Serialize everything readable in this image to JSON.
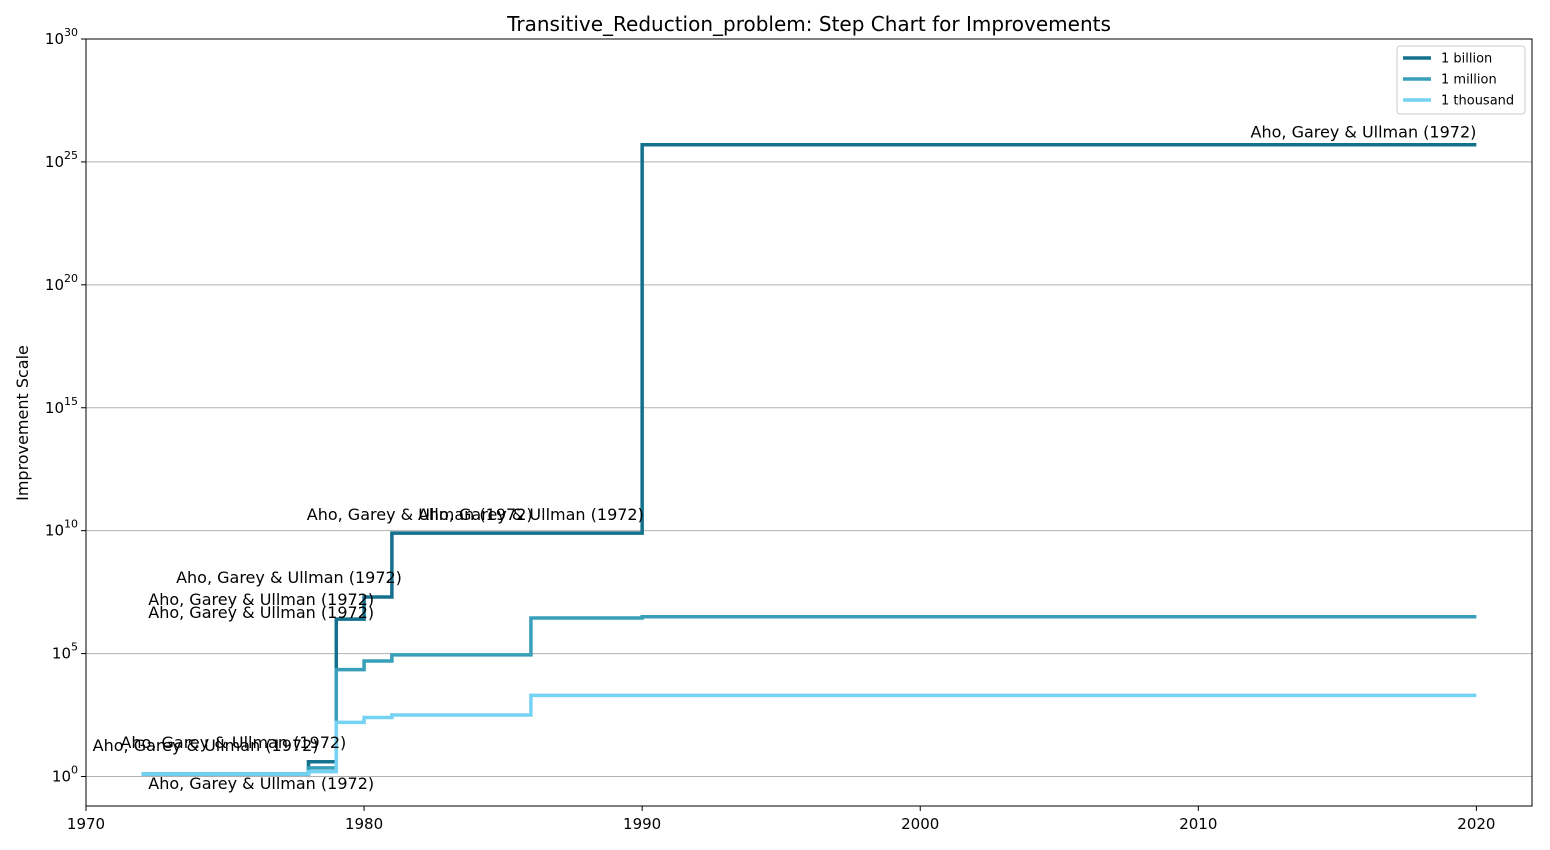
{
  "chart_data": {
    "type": "line",
    "step": true,
    "title": "Transitive_Reduction_problem: Step Chart for Improvements",
    "xlabel": "",
    "ylabel": "Improvement Scale",
    "yscale": "log",
    "xlim": [
      1970,
      2022
    ],
    "ylim_exp": [
      -1.2,
      30
    ],
    "x_ticks": [
      1970,
      1980,
      1990,
      2000,
      2010,
      2020
    ],
    "y_tick_exponents": [
      0,
      5,
      10,
      15,
      20,
      25,
      30
    ],
    "y_tick_base": "10",
    "grid": "horizontal",
    "legend_position": "top-right",
    "series": [
      {
        "name": "1 billion",
        "color": "#13718d",
        "steps": [
          [
            1972,
            0.1
          ],
          [
            1978,
            0.6
          ],
          [
            1979,
            6.4
          ],
          [
            1980,
            7.3
          ],
          [
            1981,
            9.9
          ],
          [
            1990,
            25.7
          ],
          [
            2020,
            25.7
          ]
        ]
      },
      {
        "name": "1 million",
        "color": "#379fb9",
        "steps": [
          [
            1972,
            0.1
          ],
          [
            1978,
            0.35
          ],
          [
            1979,
            4.35
          ],
          [
            1980,
            4.7
          ],
          [
            1981,
            4.95
          ],
          [
            1986,
            6.45
          ],
          [
            1990,
            6.5
          ],
          [
            2020,
            6.5
          ]
        ]
      },
      {
        "name": "1 thousand",
        "color": "#74d2f2",
        "steps": [
          [
            1972,
            0.1
          ],
          [
            1978,
            0.2
          ],
          [
            1979,
            2.2
          ],
          [
            1980,
            2.4
          ],
          [
            1981,
            2.5
          ],
          [
            1986,
            3.3
          ],
          [
            1990,
            3.3
          ],
          [
            2020,
            3.3
          ]
        ]
      }
    ],
    "annotations": [
      {
        "text": "Aho, Garey & Ullman (1972)",
        "x": 2020,
        "y_exp": 25.7,
        "anchor": "end",
        "dy": -7
      },
      {
        "text": "Aho, Garey & Ullman (1972)",
        "x": 1986,
        "y_exp": 9.9,
        "anchor": "middle",
        "dy": -13
      },
      {
        "text": "Aho, Garey & Ullman (1972)",
        "x": 1982,
        "y_exp": 9.9,
        "anchor": "middle",
        "dy": -13
      },
      {
        "text": "Aho, Garey & Ullman (1972)",
        "x": 1977.3,
        "y_exp": 7.3,
        "anchor": "middle",
        "dy": -14
      },
      {
        "text": "Aho, Garey & Ullman (1972)",
        "x": 1976.3,
        "y_exp": 6.4,
        "anchor": "middle",
        "dy": -14
      },
      {
        "text": "Aho, Garey & Ullman (1972)",
        "x": 1976.3,
        "y_exp": 6.2,
        "anchor": "middle",
        "dy": -6
      },
      {
        "text": "Aho, Garey & Ullman (1972)",
        "x": 1975.3,
        "y_exp": 0.6,
        "anchor": "middle",
        "dy": -14
      },
      {
        "text": "Aho, Garey & Ullman (1972)",
        "x": 1974.3,
        "y_exp": 0.35,
        "anchor": "middle",
        "dy": -17
      },
      {
        "text": "Aho, Garey & Ullman (1972)",
        "x": 1976.3,
        "y_exp": 0.1,
        "anchor": "middle",
        "dy": 15
      }
    ]
  }
}
